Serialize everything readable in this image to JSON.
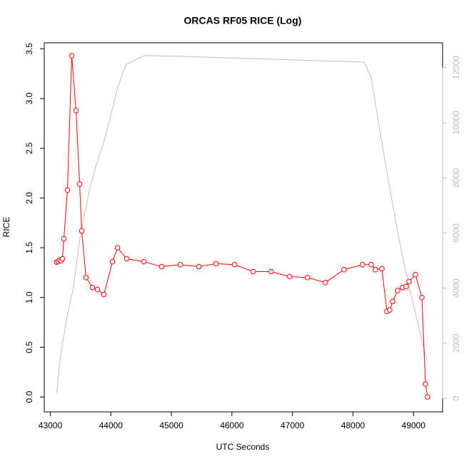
{
  "chart_data": {
    "type": "line",
    "title": "ORCAS RF05 RICE (Log)",
    "xlabel": "UTC Seconds",
    "ylabel": "RICE",
    "xlim": [
      42900,
      49480
    ],
    "ylim": [
      -0.15,
      3.56
    ],
    "y2lim": [
      -490,
      12900
    ],
    "xticks": [
      43000,
      44000,
      45000,
      46000,
      47000,
      48000,
      49000
    ],
    "yticks": [
      {
        "value": 0,
        "label": "0.0"
      },
      0.5,
      {
        "value": 1,
        "label": "1.0"
      },
      1.5,
      {
        "value": 2,
        "label": "2.0"
      },
      2.5,
      {
        "value": 3,
        "label": "3.0"
      },
      3.5
    ],
    "y2ticks": [
      0,
      2000,
      4000,
      6000,
      8000,
      10000,
      12000
    ],
    "series": [
      {
        "color": "#bebebe",
        "axis": "y2",
        "marker": false,
        "x": [
          43106,
          43165,
          43283,
          43377,
          43495,
          43637,
          43755,
          43873,
          43991,
          44110,
          44251,
          44558,
          45113,
          46293,
          47474,
          48182,
          48300,
          48418,
          48595,
          48772,
          48949,
          49221
        ],
        "values": [
          200,
          1500,
          3050,
          3960,
          5900,
          7460,
          8450,
          9220,
          10180,
          11270,
          12120,
          12440,
          12410,
          12330,
          12250,
          12200,
          11660,
          10050,
          7770,
          5650,
          3830,
          1370
        ]
      },
      {
        "color": "#ff0000",
        "marker": true,
        "x": [
          43106,
          43130,
          43153,
          43177,
          43200,
          43224,
          43283,
          43354,
          43425,
          43484,
          43519,
          43590,
          43696,
          43779,
          43885,
          44027,
          44110,
          44263,
          44546,
          44841,
          45148,
          45455,
          45738,
          46045,
          46352,
          46647,
          46954,
          47249,
          47544,
          47851,
          48158,
          48300,
          48371,
          48477,
          48560,
          48607,
          48654,
          48737,
          48819,
          48878,
          48926,
          49032,
          49138,
          49197,
          49233
        ],
        "values": [
          1.356,
          1.363,
          1.377,
          1.37,
          1.39,
          1.59,
          2.08,
          3.43,
          2.88,
          2.14,
          1.67,
          1.2,
          1.1,
          1.08,
          1.03,
          1.36,
          1.5,
          1.39,
          1.36,
          1.31,
          1.33,
          1.31,
          1.34,
          1.33,
          1.26,
          1.26,
          1.21,
          1.2,
          1.15,
          1.28,
          1.33,
          1.33,
          1.28,
          1.29,
          0.86,
          0.875,
          0.96,
          1.07,
          1.1,
          1.11,
          1.16,
          1.23,
          1.0,
          0.13,
          0.0
        ]
      }
    ]
  }
}
